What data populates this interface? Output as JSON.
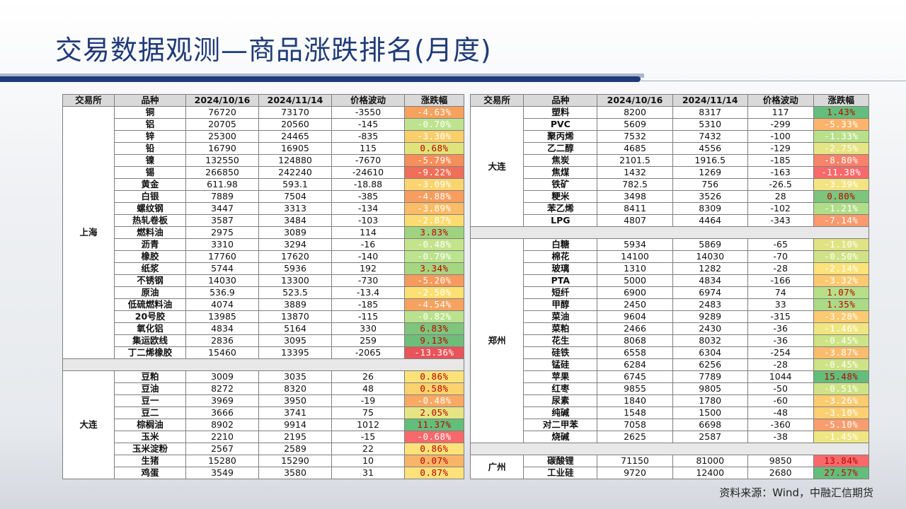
{
  "title": "交易数据观测—商品涨跌排名(月度)",
  "headers": [
    "交易所",
    "品种",
    "2024/10/16",
    "2024/11/14",
    "价格波动",
    "涨跌幅"
  ],
  "left_groups": [
    {
      "exchange": "上海",
      "rows": [
        {
          "name": "铜",
          "d1": "76720",
          "d2": "73170",
          "diff": "-3550",
          "pct": "-4.63%",
          "color": "#f7a15e"
        },
        {
          "name": "铝",
          "d1": "20705",
          "d2": "20560",
          "diff": "-145",
          "pct": "-0.70%",
          "color": "#bde38e"
        },
        {
          "name": "锌",
          "d1": "25300",
          "d2": "24465",
          "diff": "-835",
          "pct": "-3.30%",
          "color": "#fbce6c"
        },
        {
          "name": "铅",
          "d1": "16790",
          "d2": "16905",
          "diff": "115",
          "pct": "0.68%",
          "color": "#dfe37a"
        },
        {
          "name": "镍",
          "d1": "132550",
          "d2": "124880",
          "diff": "-7670",
          "pct": "-5.79%",
          "color": "#f58f5b"
        },
        {
          "name": "锡",
          "d1": "266850",
          "d2": "242240",
          "diff": "-24610",
          "pct": "-9.22%",
          "color": "#ef6f58"
        },
        {
          "name": "黄金",
          "d1": "611.98",
          "d2": "593.1",
          "diff": "-18.88",
          "pct": "-3.09%",
          "color": "#fbd46f"
        },
        {
          "name": "白银",
          "d1": "7889",
          "d2": "7504",
          "diff": "-385",
          "pct": "-4.88%",
          "color": "#f79e5e"
        },
        {
          "name": "螺纹钢",
          "d1": "3447",
          "d2": "3313",
          "diff": "-134",
          "pct": "-3.89%",
          "color": "#fbbc67"
        },
        {
          "name": "热轧卷板",
          "d1": "3587",
          "d2": "3484",
          "diff": "-103",
          "pct": "-2.87%",
          "color": "#fcdc71"
        },
        {
          "name": "燃料油",
          "d1": "2975",
          "d2": "3089",
          "diff": "114",
          "pct": "3.83%",
          "color": "#9fd37f"
        },
        {
          "name": "沥青",
          "d1": "3310",
          "d2": "3294",
          "diff": "-16",
          "pct": "-0.48%",
          "color": "#c4e48c"
        },
        {
          "name": "橡胶",
          "d1": "17760",
          "d2": "17620",
          "diff": "-140",
          "pct": "-0.79%",
          "color": "#bce38e"
        },
        {
          "name": "纸浆",
          "d1": "5744",
          "d2": "5936",
          "diff": "192",
          "pct": "3.34%",
          "color": "#a6d680"
        },
        {
          "name": "不锈钢",
          "d1": "14030",
          "d2": "13300",
          "diff": "-730",
          "pct": "-5.20%",
          "color": "#f69a5d"
        },
        {
          "name": "原油",
          "d1": "536.9",
          "d2": "523.5",
          "diff": "-13.4",
          "pct": "-2.50%",
          "color": "#fde073"
        },
        {
          "name": "低硫燃料油",
          "d1": "4074",
          "d2": "3889",
          "diff": "-185",
          "pct": "-4.54%",
          "color": "#f7a35f"
        },
        {
          "name": "20号胶",
          "d1": "13985",
          "d2": "13870",
          "diff": "-115",
          "pct": "-0.82%",
          "color": "#bae28e"
        },
        {
          "name": "氧化铝",
          "d1": "4834",
          "d2": "5164",
          "diff": "330",
          "pct": "6.83%",
          "color": "#7fc57c"
        },
        {
          "name": "集运欧线",
          "d1": "2836",
          "d2": "3095",
          "diff": "259",
          "pct": "9.13%",
          "color": "#6ebe7a"
        },
        {
          "name": "丁二烯橡胶",
          "d1": "15460",
          "d2": "13395",
          "diff": "-2065",
          "pct": "-13.36%",
          "color": "#e8545a"
        }
      ]
    },
    {
      "exchange": "大连",
      "rows": [
        {
          "name": "豆粕",
          "d1": "3009",
          "d2": "3035",
          "diff": "26",
          "pct": "0.86%",
          "color": "#fde27a"
        },
        {
          "name": "豆油",
          "d1": "8272",
          "d2": "8320",
          "diff": "48",
          "pct": "0.58%",
          "color": "#fcd26f"
        },
        {
          "name": "豆一",
          "d1": "3969",
          "d2": "3950",
          "diff": "-19",
          "pct": "-0.48%",
          "color": "#f8a964"
        },
        {
          "name": "豆二",
          "d1": "3666",
          "d2": "3741",
          "diff": "75",
          "pct": "2.05%",
          "color": "#e5e583"
        },
        {
          "name": "棕榈油",
          "d1": "8902",
          "d2": "9914",
          "diff": "1012",
          "pct": "11.37%",
          "color": "#63be7b"
        },
        {
          "name": "玉米",
          "d1": "2210",
          "d2": "2195",
          "diff": "-15",
          "pct": "-0.68%",
          "color": "#f8696b"
        },
        {
          "name": "玉米淀粉",
          "d1": "2567",
          "d2": "2589",
          "diff": "22",
          "pct": "0.86%",
          "color": "#fde27a"
        },
        {
          "name": "生猪",
          "d1": "15280",
          "d2": "15290",
          "diff": "10",
          "pct": "0.07%",
          "color": "#f9b567"
        },
        {
          "name": "鸡蛋",
          "d1": "3549",
          "d2": "3580",
          "diff": "31",
          "pct": "0.87%",
          "color": "#fde27b"
        }
      ]
    }
  ],
  "right_groups": [
    {
      "exchange": "大连",
      "rows": [
        {
          "name": "塑料",
          "d1": "8200",
          "d2": "8317",
          "diff": "117",
          "pct": "1.43%",
          "color": "#63be7b"
        },
        {
          "name": "PVC",
          "d1": "5609",
          "d2": "5310",
          "diff": "-299",
          "pct": "-5.33%",
          "color": "#fbb46a"
        },
        {
          "name": "聚丙烯",
          "d1": "7532",
          "d2": "7432",
          "diff": "-100",
          "pct": "-1.33%",
          "color": "#b8e08a"
        },
        {
          "name": "乙二醇",
          "d1": "4685",
          "d2": "4556",
          "diff": "-129",
          "pct": "-2.75%",
          "color": "#e5e583"
        },
        {
          "name": "焦炭",
          "d1": "2101.5",
          "d2": "1916.5",
          "diff": "-185",
          "pct": "-8.80%",
          "color": "#f7836a"
        },
        {
          "name": "焦煤",
          "d1": "1432",
          "d2": "1269",
          "diff": "-163",
          "pct": "-11.38%",
          "color": "#f8696b"
        },
        {
          "name": "铁矿",
          "d1": "782.5",
          "d2": "756",
          "diff": "-26.5",
          "pct": "-3.39%",
          "color": "#f3e382"
        },
        {
          "name": "粳米",
          "d1": "3498",
          "d2": "3526",
          "diff": "28",
          "pct": "0.80%",
          "color": "#7cc57c"
        },
        {
          "name": "苯乙烯",
          "d1": "8411",
          "d2": "8309",
          "diff": "-102",
          "pct": "-1.21%",
          "color": "#b0dd88"
        },
        {
          "name": "LPG",
          "d1": "4807",
          "d2": "4464",
          "diff": "-343",
          "pct": "-7.14%",
          "color": "#fa9a6e"
        }
      ]
    },
    {
      "exchange": "郑州",
      "rows": [
        {
          "name": "白糖",
          "d1": "5934",
          "d2": "5869",
          "diff": "-65",
          "pct": "-1.10%",
          "color": "#e0e383"
        },
        {
          "name": "棉花",
          "d1": "14100",
          "d2": "14030",
          "diff": "-70",
          "pct": "-0.50%",
          "color": "#cfe386"
        },
        {
          "name": "玻璃",
          "d1": "1310",
          "d2": "1282",
          "diff": "-28",
          "pct": "-2.14%",
          "color": "#fde27a"
        },
        {
          "name": "PTA",
          "d1": "5000",
          "d2": "4834",
          "diff": "-166",
          "pct": "-3.32%",
          "color": "#fcc970"
        },
        {
          "name": "短纤",
          "d1": "6900",
          "d2": "6974",
          "diff": "74",
          "pct": "1.07%",
          "color": "#b6df88"
        },
        {
          "name": "甲醇",
          "d1": "2450",
          "d2": "2483",
          "diff": "33",
          "pct": "1.35%",
          "color": "#aada86"
        },
        {
          "name": "菜油",
          "d1": "9604",
          "d2": "9289",
          "diff": "-315",
          "pct": "-3.28%",
          "color": "#fcca70"
        },
        {
          "name": "菜粕",
          "d1": "2466",
          "d2": "2430",
          "diff": "-36",
          "pct": "-1.46%",
          "color": "#efe682"
        },
        {
          "name": "花生",
          "d1": "8068",
          "d2": "8032",
          "diff": "-36",
          "pct": "-0.45%",
          "color": "#cde385"
        },
        {
          "name": "硅铁",
          "d1": "6558",
          "d2": "6304",
          "diff": "-254",
          "pct": "-3.87%",
          "color": "#fbbc6d"
        },
        {
          "name": "锰硅",
          "d1": "6284",
          "d2": "6256",
          "diff": "-28",
          "pct": "-0.45%",
          "color": "#cde385"
        },
        {
          "name": "苹果",
          "d1": "6745",
          "d2": "7789",
          "diff": "1044",
          "pct": "15.48%",
          "color": "#63be7b"
        },
        {
          "name": "红枣",
          "d1": "9855",
          "d2": "9805",
          "diff": "-50",
          "pct": "-0.51%",
          "color": "#cfe386"
        },
        {
          "name": "尿素",
          "d1": "1840",
          "d2": "1780",
          "diff": "-60",
          "pct": "-3.26%",
          "color": "#fccb70"
        },
        {
          "name": "纯碱",
          "d1": "1548",
          "d2": "1500",
          "diff": "-48",
          "pct": "-3.10%",
          "color": "#fccf71"
        },
        {
          "name": "对二甲苯",
          "d1": "7058",
          "d2": "6698",
          "diff": "-360",
          "pct": "-5.10%",
          "color": "#fa9d6e"
        },
        {
          "name": "烧碱",
          "d1": "2625",
          "d2": "2587",
          "diff": "-38",
          "pct": "-1.45%",
          "color": "#eee682"
        }
      ]
    },
    {
      "exchange": "广州",
      "rows": [
        {
          "name": "碳酸锂",
          "d1": "71150",
          "d2": "81000",
          "diff": "9850",
          "pct": "13.84%",
          "color": "#f8696b"
        },
        {
          "name": "工业硅",
          "d1": "9720",
          "d2": "12400",
          "diff": "2680",
          "pct": "27.57%",
          "color": "#63be7b"
        }
      ]
    }
  ],
  "source": "资料来源：Wind，中融汇信期货"
}
